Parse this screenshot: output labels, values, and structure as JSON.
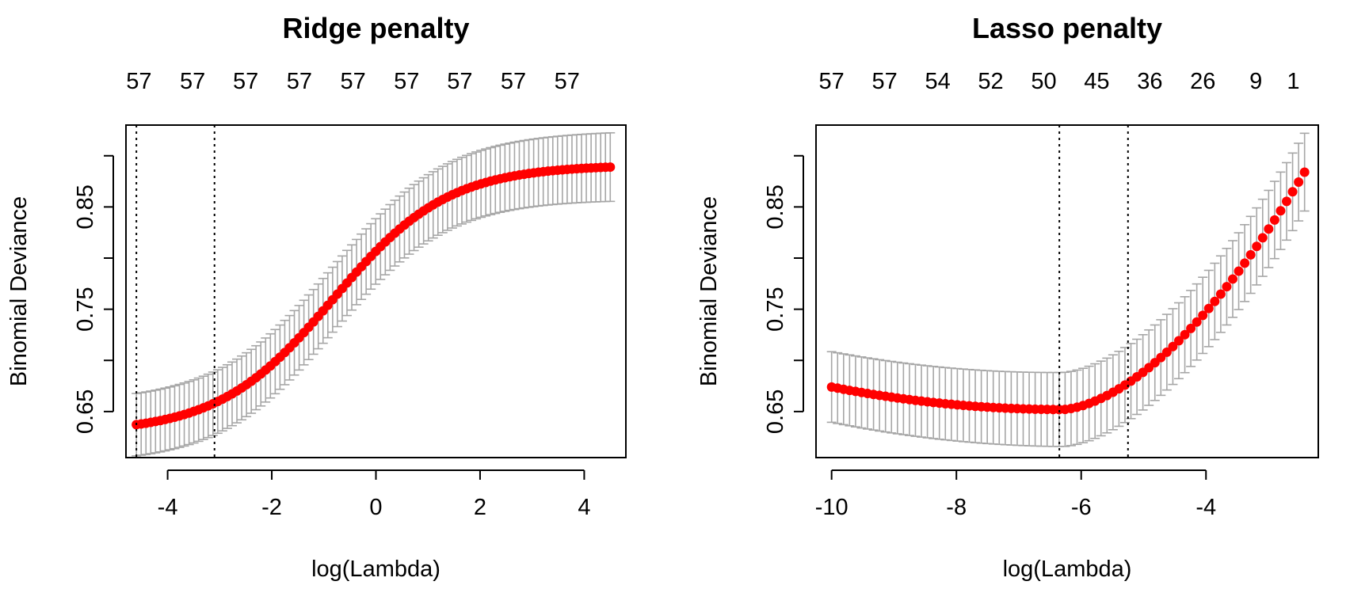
{
  "figure": {
    "colors": {
      "point": "#ff0000",
      "errorbar": "#a6a6a6",
      "axis": "#000000",
      "vline": "#000000"
    }
  },
  "chart_data": [
    {
      "type": "scatter",
      "title": "Ridge penalty",
      "xlabel": "log(Lambda)",
      "ylabel": "Binomial Deviance",
      "xlim": [
        -4.8,
        4.8
      ],
      "ylim": [
        0.605,
        0.93
      ],
      "xticks": [
        -4,
        -2,
        0,
        2,
        4
      ],
      "xtick_labels": [
        "-4",
        "-2",
        "0",
        "2",
        "4"
      ],
      "yticks": [
        0.65,
        0.7,
        0.75,
        0.8,
        0.85,
        0.9
      ],
      "ytick_labels": [
        "0.65",
        "",
        "0.75",
        "",
        "0.85",
        ""
      ],
      "top_axis": {
        "x": [
          -4.55,
          -3.52,
          -2.5,
          -1.47,
          -0.44,
          0.59,
          1.61,
          2.64,
          3.67
        ],
        "labels": [
          "57",
          "57",
          "57",
          "57",
          "57",
          "57",
          "57",
          "57",
          "57"
        ]
      },
      "vlines": [
        -4.6,
        -3.1
      ],
      "curve": {
        "kind": "logistic",
        "xmin": -4.6,
        "xmax": 4.5,
        "n": 100,
        "base": 0.629,
        "amplitude": 0.262,
        "center": -0.82,
        "scale": 1.1
      },
      "errorbar_halfwidth": {
        "left": 0.0305,
        "right": 0.0335
      },
      "errorbar_every": 1,
      "grid": false,
      "legend": "none"
    },
    {
      "type": "scatter",
      "title": "Lasso penalty",
      "xlabel": "log(Lambda)",
      "ylabel": "Binomial Deviance",
      "xlim": [
        -10.25,
        -2.2
      ],
      "ylim": [
        0.605,
        0.93
      ],
      "xticks": [
        -10,
        -8,
        -6,
        -4
      ],
      "xtick_labels": [
        "-10",
        "-8",
        "-6",
        "-4"
      ],
      "yticks": [
        0.65,
        0.7,
        0.75,
        0.8,
        0.85,
        0.9
      ],
      "ytick_labels": [
        "0.65",
        "",
        "0.75",
        "",
        "0.85",
        ""
      ],
      "top_axis": {
        "x": [
          -10.0,
          -9.15,
          -8.3,
          -7.45,
          -6.6,
          -5.75,
          -4.9,
          -4.05,
          -3.2,
          -2.6
        ],
        "labels": [
          "57",
          "57",
          "54",
          "52",
          "50",
          "45",
          "36",
          "26",
          "9",
          "1"
        ]
      },
      "vlines": [
        -6.35,
        -5.25
      ],
      "curve": {
        "kind": "smooth-min",
        "xmin": -10.0,
        "xmax": -2.42,
        "xmin_at": -6.3,
        "ymin": 0.652,
        "y_at_xmin": 0.674,
        "y_at_xmax": 0.884,
        "n": 80
      },
      "errorbar_halfwidth": {
        "left": 0.0345,
        "right": 0.038
      },
      "errorbar_every": 1,
      "grid": false,
      "legend": "none"
    }
  ]
}
